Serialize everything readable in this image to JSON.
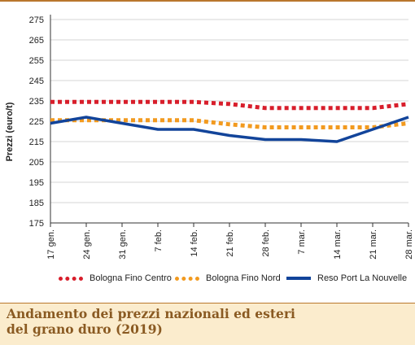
{
  "caption": {
    "title_line1": "Andamento dei prezzi nazionali ed esteri",
    "title_line2": "del grano duro (2019)"
  },
  "chart_data": {
    "type": "line",
    "title": "Andamento dei prezzi nazionali ed esteri del grano duro (2019)",
    "xlabel": "",
    "ylabel": "Prezzi (euro/t)",
    "ylim": [
      175,
      275
    ],
    "yticks": [
      175,
      185,
      195,
      205,
      215,
      225,
      235,
      245,
      255,
      265,
      275
    ],
    "categories": [
      "17 gen.",
      "24 gen.",
      "31 gen.",
      "7 feb.",
      "14 feb.",
      "21 feb.",
      "28 feb.",
      "7 mar.",
      "14 mar.",
      "21 mar.",
      "28 mar."
    ],
    "grid": "horizontal",
    "legend_position": "bottom",
    "series": [
      {
        "name": "Bologna Fino Centro",
        "color": "#d81e2b",
        "style": "dotted",
        "values": [
          234.5,
          234.5,
          234.5,
          234.5,
          234.5,
          233.5,
          231.5,
          231.5,
          231.5,
          231.5,
          233.5
        ]
      },
      {
        "name": "Bologna Fino Nord",
        "color": "#f29a1f",
        "style": "dotted",
        "values": [
          225.5,
          225.5,
          225.5,
          225.5,
          225.5,
          223.5,
          222,
          222,
          222,
          222,
          224
        ]
      },
      {
        "name": "Reso Port La Nouvelle",
        "color": "#12449a",
        "style": "solid",
        "values": [
          224,
          227,
          224,
          221,
          221,
          218,
          216,
          216,
          215,
          221,
          227
        ]
      }
    ]
  }
}
